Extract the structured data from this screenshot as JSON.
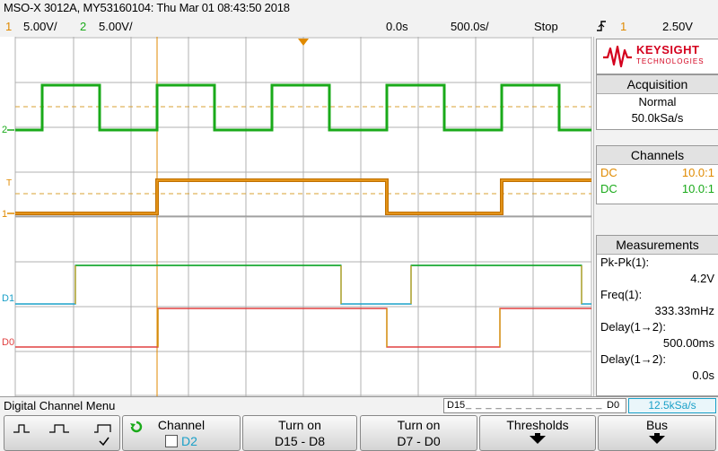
{
  "header": {
    "title": "MSO-X 3012A, MY53160104: Thu Mar 01 08:43:50 2018",
    "ch1_num": "1",
    "ch1_scale": "5.00V/",
    "ch2_num": "2",
    "ch2_scale": "5.00V/",
    "time_delay": "0.0s",
    "time_scale": "500.0s/",
    "run_state": "Stop",
    "trigger_icon": "trigger-edge-icon",
    "trigger_source": "1",
    "trigger_level": "2.50V"
  },
  "colors": {
    "ch1": "#e08a00",
    "ch2": "#1aaa1a",
    "d1": "#1aa0c8",
    "d0": "#e04040",
    "grid": "#b0b0b0",
    "keysight_red": "#d4001e"
  },
  "waveform_labels": {
    "ch2_marker": "2",
    "ch1_marker": "1",
    "trig_marker": "T",
    "d1_label": "D1",
    "d0_label": "D0"
  },
  "panel": {
    "logo_brand": "KEYSIGHT",
    "logo_sub": "TECHNOLOGIES",
    "acquisition": {
      "header": "Acquisition",
      "mode": "Normal",
      "rate": "50.0kSa/s"
    },
    "channels": {
      "header": "Channels",
      "rows": [
        {
          "label": "DC",
          "value": "10.0:1"
        },
        {
          "label": "DC",
          "value": "10.0:1"
        }
      ]
    },
    "measurements": {
      "header": "Measurements",
      "items": [
        {
          "label": "Pk-Pk(1):",
          "value": "4.2V"
        },
        {
          "label": "Freq(1):",
          "value": "333.33mHz"
        },
        {
          "label": "Delay(1→2):",
          "value": "500.00ms"
        },
        {
          "label": "Delay(1→2):",
          "value": "0.0s"
        }
      ]
    }
  },
  "status": {
    "menu_name": "Digital Channel Menu",
    "digital_range_left": "D15",
    "digital_range_right": "D0",
    "digital_rate": "12.5kSa/s"
  },
  "softkeys": {
    "threshold_icons": [
      "pulse-narrow-icon",
      "pulse-medium-icon",
      "pulse-wide-icon"
    ],
    "channel_label": "Channel",
    "channel_value": "D2",
    "turn_on_1_label": "Turn on",
    "turn_on_1_value": "D15 - D8",
    "turn_on_2_label": "Turn on",
    "turn_on_2_value": "D7 - D0",
    "thresholds_label": "Thresholds",
    "bus_label": "Bus"
  }
}
